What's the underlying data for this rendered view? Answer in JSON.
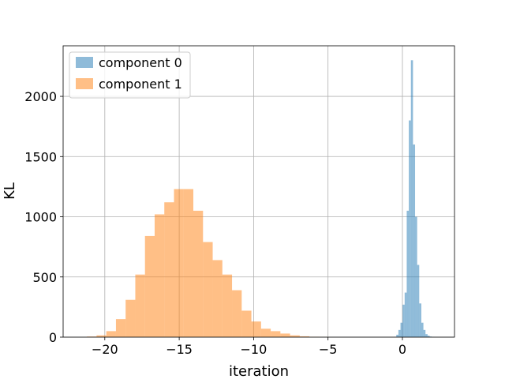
{
  "chart_data": {
    "type": "bar",
    "title": "",
    "xlabel": "iteration",
    "ylabel": "KL",
    "xlim": [
      -22.8,
      3.5
    ],
    "ylim": [
      0,
      2420
    ],
    "xticks": [
      -20,
      -15,
      -10,
      -5,
      0
    ],
    "xtick_labels": [
      "−20",
      "−15",
      "−10",
      "−5",
      "0"
    ],
    "yticks": [
      0,
      500,
      1000,
      1500,
      2000
    ],
    "ytick_labels": [
      "0",
      "500",
      "1000",
      "1500",
      "2000"
    ],
    "grid": true,
    "legend_position": "top-left",
    "series": [
      {
        "name": "component 0",
        "color": "#1f77b4",
        "opacity": 0.5,
        "bin_edges": [
          -0.55,
          -0.41,
          -0.27,
          -0.13,
          0.01,
          0.15,
          0.29,
          0.43,
          0.57,
          0.71,
          0.85,
          0.99,
          1.13,
          1.27,
          1.41,
          1.55,
          1.69,
          1.83,
          1.97,
          2.11,
          2.25
        ],
        "counts": [
          3,
          20,
          60,
          120,
          270,
          370,
          1050,
          1800,
          2300,
          1600,
          1000,
          600,
          280,
          120,
          60,
          25,
          12,
          5,
          2,
          1
        ]
      },
      {
        "name": "component 1",
        "color": "#ff7f0e",
        "opacity": 0.5,
        "bin_edges": [
          -21.2,
          -20.55,
          -19.9,
          -19.25,
          -18.6,
          -17.95,
          -17.3,
          -16.65,
          -16.0,
          -15.35,
          -14.7,
          -14.05,
          -13.4,
          -12.75,
          -12.1,
          -11.45,
          -10.8,
          -10.15,
          -9.5,
          -8.85,
          -8.2,
          -7.55,
          -6.9,
          -6.25,
          -5.6,
          -4.95
        ],
        "counts": [
          5,
          15,
          50,
          150,
          310,
          520,
          840,
          1020,
          1120,
          1230,
          1230,
          1050,
          790,
          640,
          520,
          390,
          220,
          130,
          70,
          50,
          30,
          15,
          7,
          3,
          1
        ]
      }
    ]
  }
}
